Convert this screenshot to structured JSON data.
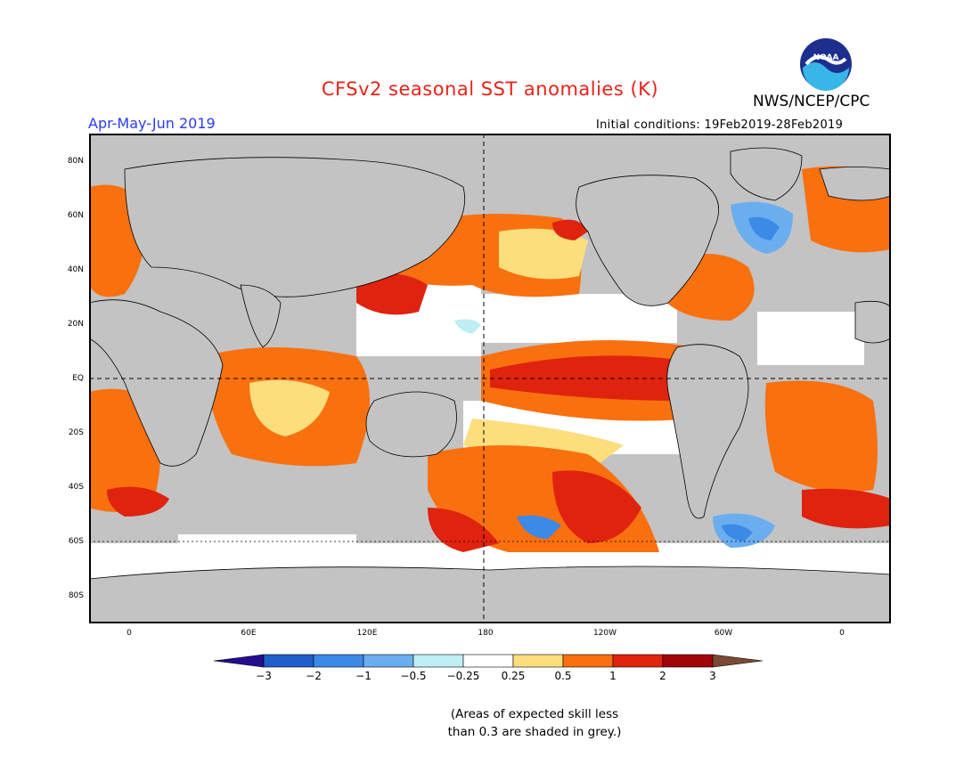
{
  "header": {
    "title": "CFSv2 seasonal SST anomalies (K)",
    "agency": "NWS/NCEP/CPC",
    "logo_text": "NOAA",
    "period": "Apr-May-Jun 2019",
    "initial_conditions": "Initial conditions: 19Feb2019-28Feb2019"
  },
  "map": {
    "lat_labels": [
      "80N",
      "60N",
      "40N",
      "20N",
      "EQ",
      "20S",
      "40S",
      "60S",
      "80S"
    ],
    "lon_labels": [
      "0",
      "60E",
      "120E",
      "180",
      "120W",
      "60W",
      "0"
    ],
    "colors": {
      "land": "#c3c3c3",
      "frame": "#000000"
    }
  },
  "colorbar": {
    "labels": [
      "−3",
      "−2",
      "−1",
      "−0.5",
      "−0.25",
      "0.25",
      "0.5",
      "1",
      "2",
      "3"
    ],
    "colors": [
      "#250d90",
      "#1f5fc9",
      "#3b8ae6",
      "#6aaef0",
      "#bfeef5",
      "#ffffff",
      "#fcde7d",
      "#f9700f",
      "#e0230e",
      "#a10606",
      "#7a4a35"
    ]
  },
  "note": {
    "line1": "(Areas of expected skill less",
    "line2": "than 0.3 are shaded in grey.)"
  }
}
